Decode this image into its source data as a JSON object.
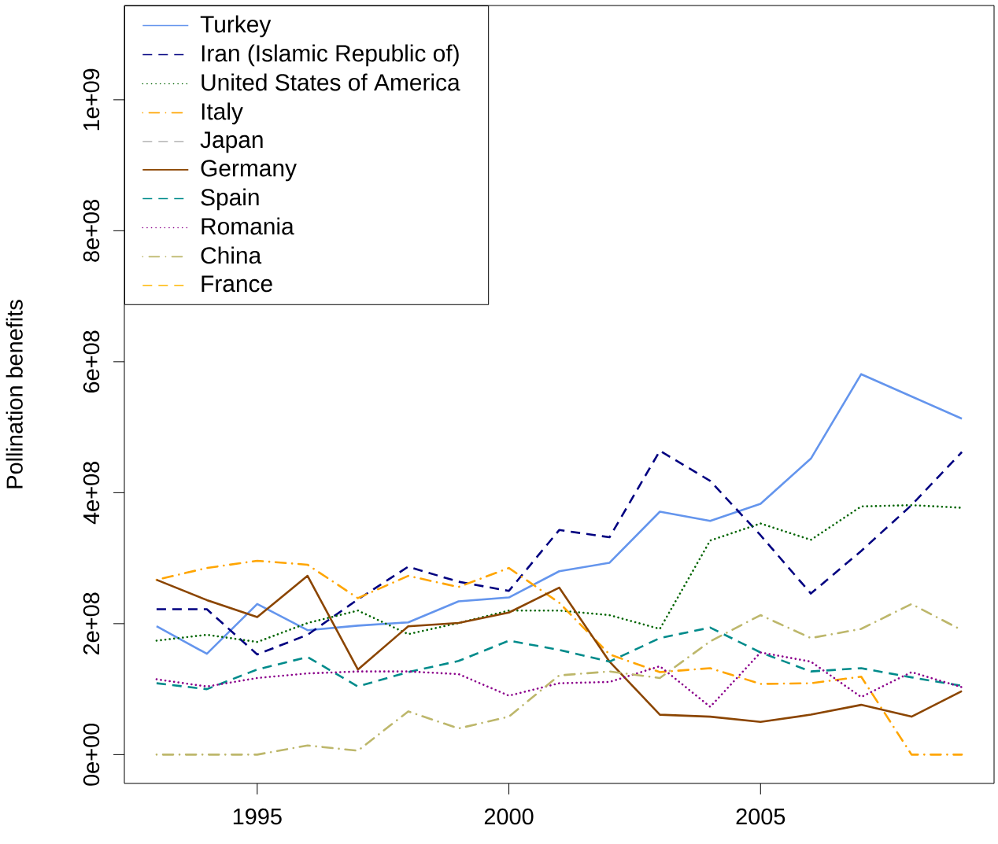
{
  "chart_data": {
    "type": "line",
    "ylabel": "Pollination benefits",
    "x": [
      1993,
      1994,
      1995,
      1996,
      1997,
      1998,
      1999,
      2000,
      2001,
      2002,
      2003,
      2004,
      2005,
      2006,
      2007,
      2008,
      2009
    ],
    "xlim": [
      1992.36,
      2009.64
    ],
    "xticks": [
      1995,
      2000,
      2005
    ],
    "ylim": [
      -44000000,
      1144000000
    ],
    "yticks": [
      {
        "value": 0,
        "label": "0e+00"
      },
      {
        "value": 200000000,
        "label": "2e+08"
      },
      {
        "value": 400000000,
        "label": "4e+08"
      },
      {
        "value": 600000000,
        "label": "6e+08"
      },
      {
        "value": 800000000,
        "label": "8e+08"
      },
      {
        "value": 1000000000,
        "label": "1e+09"
      }
    ],
    "grid": false,
    "legend": "top left",
    "marker": "none",
    "series": [
      {
        "name": "Turkey",
        "color": "#6495ed",
        "line_style": "solid",
        "values": [
          196000000.0,
          154000000.0,
          230000000.0,
          190000000.0,
          197000000.0,
          202000000.0,
          234000000.0,
          240000000.0,
          280000000.0,
          293000000.0,
          371000000.0,
          357000000.0,
          383000000.0,
          452000000.0,
          581000000.0,
          547000000.0,
          513000000.0
        ]
      },
      {
        "name": "Iran (Islamic Republic of)",
        "color": "#000080",
        "line_style": "dashed",
        "values": [
          222000000.0,
          222000000.0,
          153000000.0,
          183000000.0,
          237000000.0,
          287000000.0,
          264000000.0,
          250000000.0,
          343000000.0,
          332000000.0,
          464000000.0,
          418000000.0,
          335000000.0,
          246000000.0,
          311000000.0,
          381000000.0,
          462000000.0
        ]
      },
      {
        "name": "United States of America",
        "color": "#006400",
        "line_style": "dotted",
        "values": [
          174000000.0,
          183000000.0,
          172000000.0,
          201000000.0,
          220000000.0,
          184000000.0,
          201000000.0,
          220000000.0,
          220000000.0,
          213000000.0,
          192000000.0,
          327000000.0,
          353000000.0,
          328000000.0,
          379000000.0,
          381000000.0,
          377000000.0
        ]
      },
      {
        "name": "Italy",
        "color": "#ffa500",
        "line_style": "dashdot",
        "values": [
          267000000.0,
          285000000.0,
          296000000.0,
          290000000.0,
          239000000.0,
          273000000.0,
          256000000.0,
          285000000.0,
          232000000.0,
          153000000.0,
          126000000.0,
          132000000.0,
          108000000.0,
          109000000.0,
          119000000.0,
          0,
          0
        ]
      },
      {
        "name": "Japan",
        "color": "#bebebe",
        "line_style": "dashed",
        "values": [
          null,
          null,
          null,
          null,
          null,
          null,
          null,
          null,
          null,
          null,
          null,
          null,
          null,
          null,
          null,
          null,
          null
        ]
      },
      {
        "name": "Germany",
        "color": "#8b4500",
        "line_style": "solid",
        "values": [
          267000000.0,
          236000000.0,
          210000000.0,
          273000000.0,
          130000000.0,
          196000000.0,
          201000000.0,
          217000000.0,
          255000000.0,
          142000000.0,
          61000000.0,
          58000000.0,
          50000000.0,
          61000000.0,
          76000000.0,
          58000000.0,
          97000000.0
        ]
      },
      {
        "name": "Spain",
        "color": "#008b8b",
        "line_style": "dashed",
        "values": [
          109000000.0,
          100000000.0,
          130000000.0,
          149000000.0,
          104000000.0,
          126000000.0,
          143000000.0,
          174000000.0,
          160000000.0,
          142000000.0,
          178000000.0,
          194000000.0,
          156000000.0,
          127000000.0,
          132000000.0,
          118000000.0,
          105000000.0
        ]
      },
      {
        "name": "Romania",
        "color": "#8b008b",
        "line_style": "dotted",
        "values": [
          115000000.0,
          104000000.0,
          117000000.0,
          124000000.0,
          127000000.0,
          127000000.0,
          123000000.0,
          90000000.0,
          109000000.0,
          111000000.0,
          135000000.0,
          73000000.0,
          156000000.0,
          142000000.0,
          88000000.0,
          126000000.0,
          103000000.0
        ]
      },
      {
        "name": "China",
        "color": "#bdb76b",
        "line_style": "dashdot",
        "values": [
          0,
          0,
          0,
          14000000.0,
          6000000.0,
          66000000.0,
          40000000.0,
          58000000.0,
          121000000.0,
          127000000.0,
          117000000.0,
          173000000.0,
          213000000.0,
          178000000.0,
          192000000.0,
          230000000.0,
          190000000.0
        ]
      },
      {
        "name": "France",
        "color": "#ffc125",
        "line_style": "dashed",
        "values": [
          null,
          null,
          null,
          null,
          null,
          null,
          null,
          null,
          null,
          null,
          null,
          null,
          null,
          null,
          null,
          null,
          null
        ]
      }
    ]
  }
}
